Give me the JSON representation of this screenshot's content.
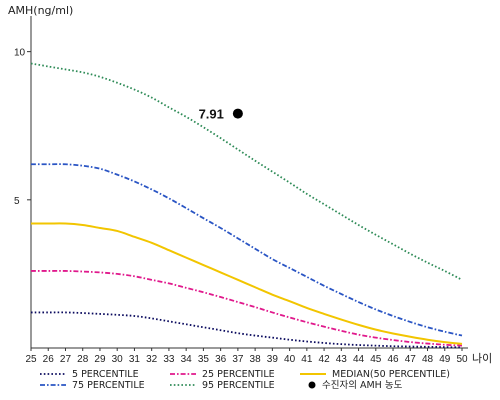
{
  "chart_data": {
    "type": "line",
    "ylabel": "AMH(ng/ml)",
    "xlabel": "나이",
    "x": [
      25,
      26,
      27,
      28,
      29,
      30,
      31,
      32,
      33,
      34,
      35,
      36,
      37,
      38,
      39,
      40,
      41,
      42,
      43,
      44,
      45,
      46,
      47,
      48,
      49,
      50
    ],
    "xlim": [
      25,
      50
    ],
    "ylim": [
      0,
      11
    ],
    "yticks": [
      "5",
      "10"
    ],
    "grid": false,
    "legend_position": "bottom",
    "series": [
      {
        "name": "5 PERCENTILE",
        "color": "#0a0a5e",
        "style": "dotted",
        "values": [
          1.2,
          1.2,
          1.2,
          1.18,
          1.15,
          1.12,
          1.08,
          1.0,
          0.9,
          0.8,
          0.7,
          0.6,
          0.5,
          0.42,
          0.35,
          0.28,
          0.22,
          0.17,
          0.13,
          0.1,
          0.08,
          0.06,
          0.05,
          0.04,
          0.03,
          0.02
        ]
      },
      {
        "name": "25 PERCENTILE",
        "color": "#e0198c",
        "style": "dashdot",
        "values": [
          2.6,
          2.6,
          2.6,
          2.58,
          2.55,
          2.5,
          2.42,
          2.3,
          2.18,
          2.03,
          1.88,
          1.72,
          1.55,
          1.38,
          1.2,
          1.03,
          0.87,
          0.72,
          0.58,
          0.45,
          0.35,
          0.27,
          0.2,
          0.15,
          0.11,
          0.08
        ]
      },
      {
        "name": "MEDIAN(50 PERCENTILE)",
        "color": "#f2c500",
        "style": "solid",
        "values": [
          4.2,
          4.2,
          4.2,
          4.15,
          4.05,
          3.95,
          3.75,
          3.55,
          3.3,
          3.05,
          2.8,
          2.55,
          2.3,
          2.05,
          1.8,
          1.58,
          1.35,
          1.15,
          0.96,
          0.78,
          0.62,
          0.49,
          0.38,
          0.28,
          0.2,
          0.14
        ]
      },
      {
        "name": "75 PERCENTILE",
        "color": "#2a55c4",
        "style": "dashdot",
        "values": [
          6.2,
          6.2,
          6.2,
          6.15,
          6.05,
          5.85,
          5.62,
          5.35,
          5.05,
          4.72,
          4.38,
          4.05,
          3.7,
          3.35,
          3.0,
          2.7,
          2.4,
          2.1,
          1.82,
          1.55,
          1.3,
          1.08,
          0.88,
          0.7,
          0.55,
          0.42
        ]
      },
      {
        "name": "95 PERCENTILE",
        "color": "#2e8b57",
        "style": "dotted",
        "values": [
          9.6,
          9.5,
          9.4,
          9.3,
          9.15,
          8.95,
          8.72,
          8.45,
          8.12,
          7.8,
          7.45,
          7.08,
          6.7,
          6.32,
          5.95,
          5.58,
          5.2,
          4.85,
          4.5,
          4.15,
          3.82,
          3.5,
          3.18,
          2.88,
          2.6,
          2.3
        ]
      }
    ],
    "annotation": {
      "x": 37,
      "y": 7.91,
      "label": "7.91"
    },
    "marker_legend": {
      "label": "수진자의 AMH 농도",
      "color": "#000000"
    }
  }
}
